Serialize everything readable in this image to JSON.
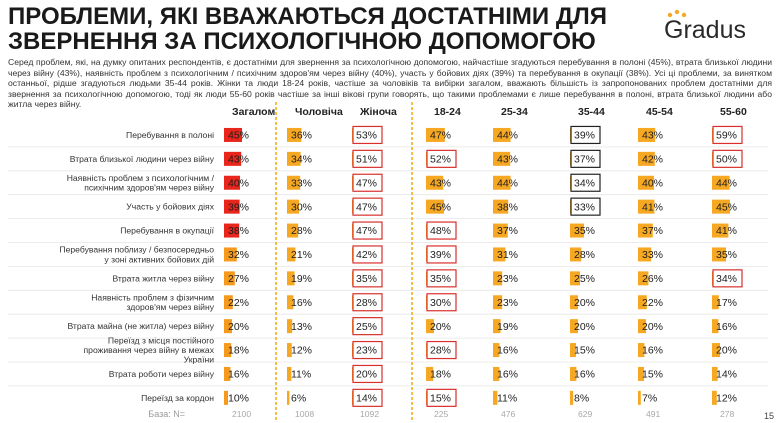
{
  "header": {
    "title": "ПРОБЛЕМИ, ЯКІ ВВАЖАЮТЬСЯ ДОСТАТНІМИ ДЛЯ ЗВЕРНЕННЯ ЗА ПСИХОЛОГІЧНОЮ ДОПОМОГОЮ",
    "brand": "Gradus",
    "intro": "Серед проблем, які, на думку опитаних респондентів, є достатніми для звернення за психологічною допомогою, найчастіше згадуються перебування в полоні (45%), втрата близької людини через війну (43%), наявність проблем з психологічним / психічним здоров'ям через війну (40%), участь у бойових діях (39%) та перебування в окупації (38%). Усі ці проблеми, за винятком останньої, рідше згадуються людьми 35-44 років. Жінки та люди 18-24 років, частіше за чоловіків та вибірки загалом, вважають більшість із запропонованих проблем достатніми для звернення за психологічною допомогою, тоді як люди 55-60 років частіше за інші вікові групи говорять, що такими проблемами є лише перебування в полоні, втрата близької людини або житла через війну.",
    "page_number": "15"
  },
  "colors": {
    "total_high": "#e8261b",
    "total_low": "#f59a1c",
    "bar": "#f7a823",
    "highlight_up": "#d9302c",
    "highlight_down": "#222222",
    "divider": "#f3b01a"
  },
  "chart_data": {
    "type": "table",
    "columns": [
      "Загалом",
      "Чоловіча",
      "Жіноча",
      "18-24",
      "25-34",
      "35-44",
      "45-54",
      "55-60"
    ],
    "rows": [
      "Перебування в полоні",
      "Втрата близької людини через війну",
      "Наявність проблем з психологічним / психічним здоров'ям через війну",
      "Участь у бойових діях",
      "Перебування в окупації",
      "Перебування поблизу / безпосередньо у зоні активних бойових дій",
      "Втрата житла через війну",
      "Наявність проблем з фізичним здоров'ям через війну",
      "Втрата майна (не житла) через війну",
      "Переїзд з місця постійного проживання через війну в межах України",
      "Втрата роботи через війну",
      "Переїзд за кордон"
    ],
    "values": [
      [
        45,
        36,
        53,
        47,
        44,
        39,
        43,
        59
      ],
      [
        43,
        34,
        51,
        52,
        43,
        37,
        42,
        50
      ],
      [
        40,
        33,
        47,
        43,
        44,
        34,
        40,
        44
      ],
      [
        39,
        30,
        47,
        45,
        38,
        33,
        41,
        45
      ],
      [
        38,
        28,
        47,
        48,
        37,
        35,
        37,
        41
      ],
      [
        32,
        21,
        42,
        39,
        31,
        28,
        33,
        35
      ],
      [
        27,
        19,
        35,
        35,
        23,
        25,
        26,
        34
      ],
      [
        22,
        16,
        28,
        30,
        23,
        20,
        22,
        17
      ],
      [
        20,
        13,
        25,
        20,
        19,
        20,
        20,
        16
      ],
      [
        18,
        12,
        23,
        28,
        16,
        15,
        16,
        20
      ],
      [
        16,
        11,
        20,
        18,
        16,
        16,
        15,
        14
      ],
      [
        10,
        6,
        14,
        15,
        11,
        8,
        7,
        12
      ]
    ],
    "highlights_up": [
      [
        0,
        2
      ],
      [
        0,
        7
      ],
      [
        1,
        2
      ],
      [
        1,
        3
      ],
      [
        1,
        7
      ],
      [
        2,
        2
      ],
      [
        3,
        2
      ],
      [
        4,
        2
      ],
      [
        4,
        3
      ],
      [
        5,
        2
      ],
      [
        5,
        3
      ],
      [
        6,
        2
      ],
      [
        6,
        3
      ],
      [
        6,
        7
      ],
      [
        7,
        2
      ],
      [
        7,
        3
      ],
      [
        8,
        2
      ],
      [
        9,
        2
      ],
      [
        9,
        3
      ],
      [
        10,
        2
      ],
      [
        11,
        2
      ],
      [
        11,
        3
      ]
    ],
    "highlights_down": [
      [
        0,
        5
      ],
      [
        1,
        5
      ],
      [
        2,
        5
      ],
      [
        3,
        5
      ]
    ],
    "base_label": "База: N=",
    "base": [
      2100,
      1008,
      1092,
      225,
      476,
      629,
      491,
      278
    ],
    "value_suffix": "%",
    "xlim": [
      0,
      100
    ]
  }
}
